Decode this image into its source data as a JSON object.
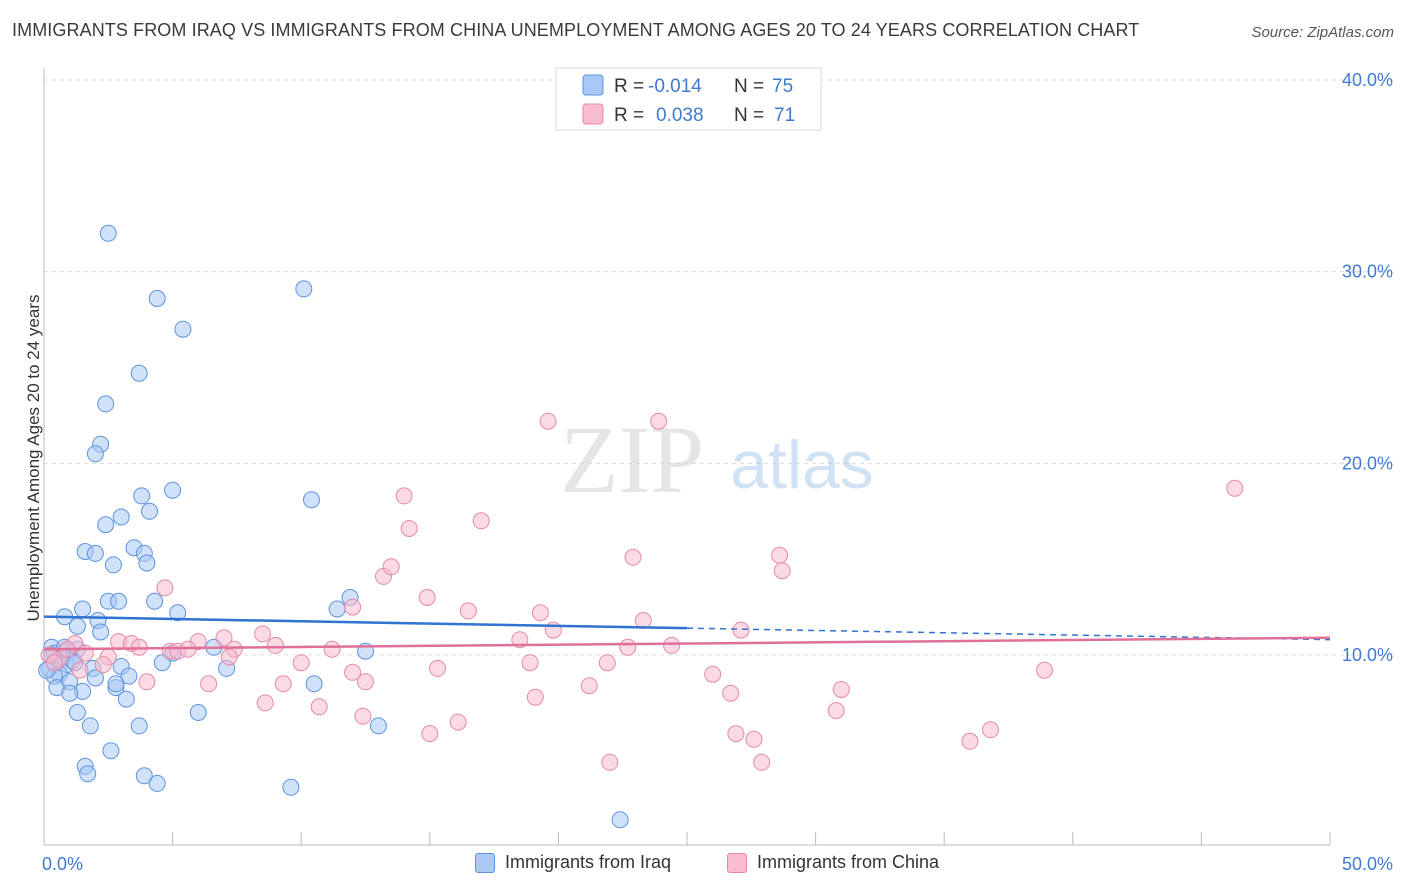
{
  "title": "IMMIGRANTS FROM IRAQ VS IMMIGRANTS FROM CHINA UNEMPLOYMENT AMONG AGES 20 TO 24 YEARS CORRELATION CHART",
  "source": "Source: ZipAtlas.com",
  "watermark": {
    "zip": "ZIP",
    "atlas": "atlas"
  },
  "colors": {
    "iraq_fill": "#a9c8f5",
    "iraq_stroke": "#5d93dd",
    "iraq_line": "#2f74d0",
    "china_fill": "#f7bccf",
    "china_stroke": "#e48aa8",
    "china_line": "#e0709a",
    "axis_label": "#3f7bd1"
  },
  "stats": {
    "iraq": {
      "r_label": "R =",
      "r_value": "-0.014",
      "n_label": "N =",
      "n_value": "75"
    },
    "china": {
      "r_label": "R =",
      "r_value": "0.038",
      "n_label": "N =",
      "n_value": "71"
    }
  },
  "chart_data": {
    "type": "scatter",
    "xlabel": "",
    "ylabel": "Unemployment Among Ages 20 to 24 years",
    "xlim": [
      0,
      50
    ],
    "ylim": [
      0,
      41
    ],
    "x_tick_labels": [
      "0.0%",
      "50.0%"
    ],
    "y_ticks": [
      10,
      20,
      30,
      40
    ],
    "y_tick_labels": [
      "10.0%",
      "20.0%",
      "30.0%",
      "40.0%"
    ],
    "grid": true,
    "legend": [
      "Immigrants from Iraq",
      "Immigrants from China"
    ],
    "series": [
      {
        "name": "Immigrants from Iraq",
        "trend": {
          "x_start": 0,
          "y_start": 12.0,
          "x_solid_end": 25,
          "y_solid_end": 11.4,
          "x_end": 50,
          "y_end": 10.8
        },
        "points": [
          [
            2.5,
            32.0
          ],
          [
            4.4,
            28.6
          ],
          [
            5.4,
            27.0
          ],
          [
            10.1,
            29.1
          ],
          [
            3.7,
            24.7
          ],
          [
            2.4,
            23.1
          ],
          [
            2.2,
            21.0
          ],
          [
            2.0,
            20.5
          ],
          [
            5.0,
            18.6
          ],
          [
            3.8,
            18.3
          ],
          [
            10.4,
            18.1
          ],
          [
            3.0,
            17.2
          ],
          [
            4.1,
            17.5
          ],
          [
            2.4,
            16.8
          ],
          [
            1.6,
            15.4
          ],
          [
            2.0,
            15.3
          ],
          [
            3.5,
            15.6
          ],
          [
            3.9,
            15.3
          ],
          [
            4.0,
            14.8
          ],
          [
            2.7,
            14.7
          ],
          [
            11.9,
            13.0
          ],
          [
            4.3,
            12.8
          ],
          [
            2.5,
            12.8
          ],
          [
            2.9,
            12.8
          ],
          [
            1.5,
            12.4
          ],
          [
            11.4,
            12.4
          ],
          [
            5.2,
            12.2
          ],
          [
            0.8,
            12.0
          ],
          [
            1.3,
            11.5
          ],
          [
            2.1,
            11.8
          ],
          [
            2.2,
            11.2
          ],
          [
            0.3,
            10.4
          ],
          [
            0.4,
            10.1
          ],
          [
            0.8,
            10.4
          ],
          [
            0.9,
            10.2
          ],
          [
            1.3,
            10.3
          ],
          [
            6.6,
            10.4
          ],
          [
            12.5,
            10.2
          ],
          [
            5.0,
            10.1
          ],
          [
            0.5,
            9.6
          ],
          [
            0.9,
            9.5
          ],
          [
            1.1,
            9.7
          ],
          [
            0.2,
            9.3
          ],
          [
            0.6,
            9.0
          ],
          [
            0.4,
            8.9
          ],
          [
            1.9,
            9.3
          ],
          [
            3.0,
            9.4
          ],
          [
            4.6,
            9.6
          ],
          [
            7.1,
            9.3
          ],
          [
            2.0,
            8.8
          ],
          [
            3.3,
            8.9
          ],
          [
            0.5,
            8.3
          ],
          [
            1.0,
            8.6
          ],
          [
            1.5,
            8.1
          ],
          [
            1.0,
            8.0
          ],
          [
            2.8,
            8.3
          ],
          [
            2.8,
            8.5
          ],
          [
            3.2,
            7.7
          ],
          [
            10.5,
            8.5
          ],
          [
            1.3,
            7.0
          ],
          [
            6.0,
            7.0
          ],
          [
            1.8,
            6.3
          ],
          [
            3.7,
            6.3
          ],
          [
            13.0,
            6.3
          ],
          [
            2.6,
            5.0
          ],
          [
            1.6,
            4.2
          ],
          [
            1.7,
            3.8
          ],
          [
            3.9,
            3.7
          ],
          [
            4.4,
            3.3
          ],
          [
            9.6,
            3.1
          ],
          [
            22.4,
            1.4
          ],
          [
            0.1,
            9.2
          ],
          [
            0.3,
            10.0
          ],
          [
            0.7,
            9.9
          ],
          [
            1.2,
            9.6
          ]
        ]
      },
      {
        "name": "Immigrants from China",
        "trend": {
          "x_start": 0,
          "y_start": 10.3,
          "x_end": 50,
          "y_end": 10.9
        },
        "points": [
          [
            19.6,
            22.2
          ],
          [
            23.9,
            22.2
          ],
          [
            46.3,
            18.7
          ],
          [
            14.0,
            18.3
          ],
          [
            17.0,
            17.0
          ],
          [
            14.2,
            16.6
          ],
          [
            22.9,
            15.1
          ],
          [
            28.6,
            15.2
          ],
          [
            13.2,
            14.1
          ],
          [
            28.7,
            14.4
          ],
          [
            13.5,
            14.6
          ],
          [
            4.7,
            13.5
          ],
          [
            12.0,
            12.5
          ],
          [
            14.9,
            13.0
          ],
          [
            16.5,
            12.3
          ],
          [
            19.3,
            12.2
          ],
          [
            23.3,
            11.8
          ],
          [
            19.8,
            11.3
          ],
          [
            27.1,
            11.3
          ],
          [
            8.5,
            11.1
          ],
          [
            7.0,
            10.9
          ],
          [
            1.2,
            10.6
          ],
          [
            2.9,
            10.7
          ],
          [
            3.4,
            10.6
          ],
          [
            6.0,
            10.7
          ],
          [
            9.0,
            10.5
          ],
          [
            18.5,
            10.8
          ],
          [
            24.4,
            10.5
          ],
          [
            3.7,
            10.4
          ],
          [
            4.9,
            10.2
          ],
          [
            5.2,
            10.2
          ],
          [
            5.6,
            10.3
          ],
          [
            7.4,
            10.3
          ],
          [
            11.2,
            10.3
          ],
          [
            22.7,
            10.4
          ],
          [
            1.6,
            10.1
          ],
          [
            2.5,
            9.9
          ],
          [
            7.2,
            9.9
          ],
          [
            10.0,
            9.6
          ],
          [
            18.9,
            9.6
          ],
          [
            21.9,
            9.6
          ],
          [
            2.3,
            9.5
          ],
          [
            15.3,
            9.3
          ],
          [
            12.0,
            9.1
          ],
          [
            26.0,
            9.0
          ],
          [
            38.9,
            9.2
          ],
          [
            4.0,
            8.6
          ],
          [
            6.4,
            8.5
          ],
          [
            9.3,
            8.5
          ],
          [
            12.5,
            8.6
          ],
          [
            21.2,
            8.4
          ],
          [
            0.6,
            9.8
          ],
          [
            31.0,
            8.2
          ],
          [
            26.7,
            8.0
          ],
          [
            19.1,
            7.8
          ],
          [
            8.6,
            7.5
          ],
          [
            10.7,
            7.3
          ],
          [
            12.4,
            6.8
          ],
          [
            16.1,
            6.5
          ],
          [
            30.8,
            7.1
          ],
          [
            15.0,
            5.9
          ],
          [
            26.9,
            5.9
          ],
          [
            27.6,
            5.6
          ],
          [
            36.0,
            5.5
          ],
          [
            36.8,
            6.1
          ],
          [
            27.9,
            4.4
          ],
          [
            22.0,
            4.4
          ],
          [
            0.2,
            10.0
          ],
          [
            0.4,
            9.6
          ],
          [
            0.9,
            10.3
          ],
          [
            1.4,
            9.2
          ]
        ]
      }
    ]
  },
  "legend_bottom": {
    "iraq_label": "Immigrants from Iraq",
    "china_label": "Immigrants from China"
  }
}
